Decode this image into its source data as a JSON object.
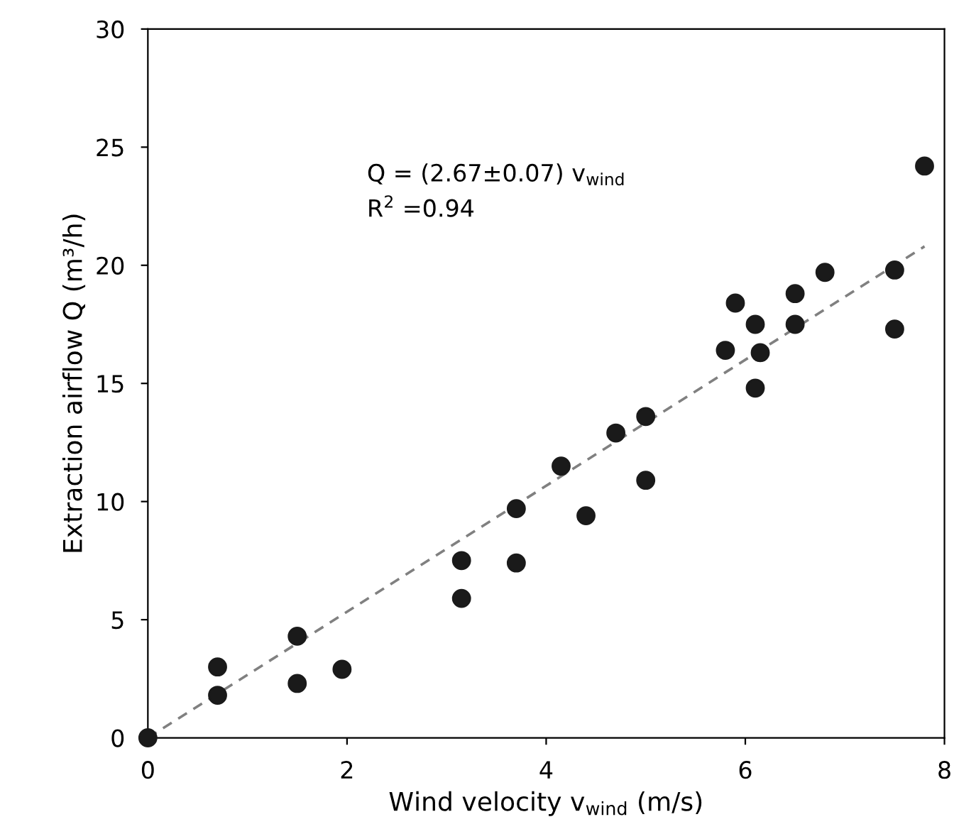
{
  "chart_data": {
    "type": "scatter",
    "xlabel": "Wind velocity v$_{wind}$ (m/s)",
    "ylabel": "Extraction airflow Q (m³/h)",
    "xlim": [
      0,
      8
    ],
    "ylim": [
      0,
      30
    ],
    "xticks": [
      0,
      2,
      4,
      6,
      8
    ],
    "yticks": [
      0,
      5,
      10,
      15,
      20,
      25,
      30
    ],
    "grid": false,
    "series": [
      {
        "marker": "circle",
        "color": "#1a1a1a",
        "x": [
          0,
          0.7,
          0.7,
          1.5,
          1.5,
          1.95,
          3.15,
          3.15,
          3.7,
          3.7,
          4.15,
          4.4,
          4.7,
          5.0,
          5.0,
          5.8,
          5.9,
          6.1,
          6.1,
          6.15,
          6.5,
          6.5,
          6.8,
          7.5,
          7.5,
          7.8
        ],
        "values": [
          0,
          1.8,
          3.0,
          2.3,
          4.3,
          2.9,
          5.9,
          7.5,
          7.4,
          9.7,
          11.5,
          9.4,
          12.9,
          13.6,
          10.9,
          16.4,
          18.4,
          17.5,
          14.8,
          16.3,
          18.8,
          17.5,
          19.7,
          19.8,
          17.3,
          24.2
        ]
      },
      {
        "type": "line",
        "color": "#808080",
        "line_style": "dashed",
        "marker": "none",
        "x": [
          0,
          7.8
        ],
        "values": [
          0,
          20.8
        ]
      }
    ],
    "annotations": [
      "Q = (2.67±0.07) v$_{wind}$",
      "R$^{2}$ =0.94"
    ]
  }
}
